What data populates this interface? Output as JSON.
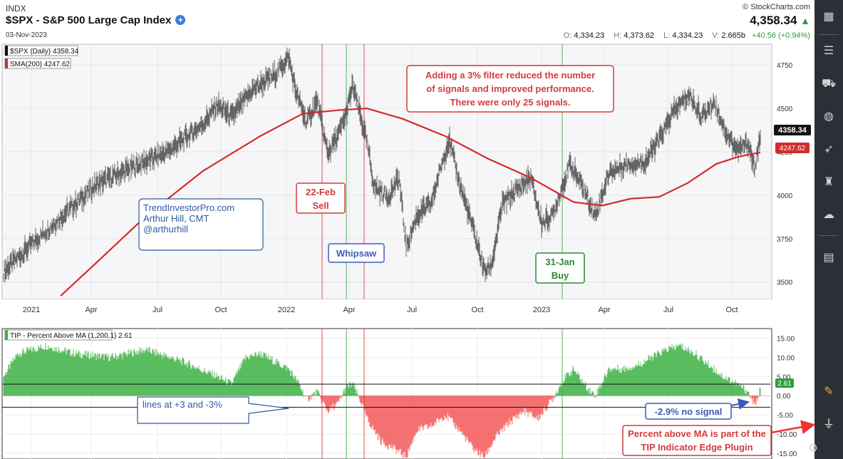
{
  "header": {
    "exchange": "INDX",
    "title": "$SPX - S&P 500 Large Cap Index",
    "date": "03-Nov-2023",
    "brand": "© StockCharts.com",
    "price": "4,358.34",
    "ohlc": {
      "open_label": "O:",
      "open": "4,334.23",
      "high_label": "H:",
      "high": "4,373.62",
      "low_label": "L:",
      "low": "4,334.23",
      "vol_label": "V:",
      "vol": "2.665b",
      "change": "+40.56 (+0.94%)"
    }
  },
  "chart_data": [
    {
      "type": "line",
      "title": "$SPX - S&P 500 Large Cap Index",
      "legend": [
        "$SPX (Daily) 4358.34",
        "SMA(200) 4247.62"
      ],
      "ylim": [
        3400,
        4870
      ],
      "y_ticks": [
        3500,
        3750,
        4000,
        4250,
        4500,
        4750
      ],
      "x_ticks": [
        "2021",
        "Apr",
        "Jul",
        "Oct",
        "2022",
        "Apr",
        "Jul",
        "Oct",
        "2023",
        "Apr",
        "Jul",
        "Oct"
      ],
      "price_points": [
        [
          0,
          3560
        ],
        [
          40,
          3720
        ],
        [
          90,
          3910
        ],
        [
          130,
          4060
        ],
        [
          180,
          4160
        ],
        [
          230,
          4250
        ],
        [
          280,
          4410
        ],
        [
          300,
          4520
        ],
        [
          320,
          4450
        ],
        [
          350,
          4610
        ],
        [
          380,
          4690
        ],
        [
          400,
          4795
        ],
        [
          410,
          4600
        ],
        [
          425,
          4420
        ],
        [
          440,
          4540
        ],
        [
          455,
          4240
        ],
        [
          470,
          4350
        ],
        [
          480,
          4460
        ],
        [
          490,
          4630
        ],
        [
          500,
          4470
        ],
        [
          510,
          4300
        ],
        [
          520,
          4050
        ],
        [
          540,
          3990
        ],
        [
          555,
          4100
        ],
        [
          565,
          3700
        ],
        [
          580,
          3880
        ],
        [
          600,
          3950
        ],
        [
          615,
          4180
        ],
        [
          625,
          4320
        ],
        [
          640,
          4070
        ],
        [
          660,
          3790
        ],
        [
          675,
          3560
        ],
        [
          685,
          3600
        ],
        [
          700,
          3950
        ],
        [
          720,
          4030
        ],
        [
          740,
          4100
        ],
        [
          755,
          3840
        ],
        [
          770,
          3880
        ],
        [
          795,
          4180
        ],
        [
          815,
          4030
        ],
        [
          830,
          3880
        ],
        [
          850,
          4130
        ],
        [
          875,
          4180
        ],
        [
          900,
          4190
        ],
        [
          920,
          4320
        ],
        [
          940,
          4480
        ],
        [
          962,
          4580
        ],
        [
          980,
          4450
        ],
        [
          997,
          4540
        ],
        [
          1015,
          4350
        ],
        [
          1030,
          4260
        ],
        [
          1045,
          4300
        ],
        [
          1055,
          4140
        ],
        [
          1062,
          4358
        ]
      ],
      "sma_points": [
        [
          80,
          3420
        ],
        [
          130,
          3610
        ],
        [
          200,
          3880
        ],
        [
          280,
          4140
        ],
        [
          360,
          4340
        ],
        [
          420,
          4470
        ],
        [
          470,
          4490
        ],
        [
          510,
          4500
        ],
        [
          560,
          4440
        ],
        [
          620,
          4340
        ],
        [
          680,
          4210
        ],
        [
          740,
          4100
        ],
        [
          800,
          3960
        ],
        [
          840,
          3940
        ],
        [
          880,
          3980
        ],
        [
          920,
          3990
        ],
        [
          960,
          4070
        ],
        [
          1000,
          4180
        ],
        [
          1030,
          4220
        ],
        [
          1062,
          4247
        ]
      ],
      "last_price_label": "4358.34",
      "sma_label": "4247.62"
    },
    {
      "type": "bar",
      "legend": [
        "TIP - Percent Above MA (1,200,1) 2.61"
      ],
      "ylim": [
        -16.5,
        17.5
      ],
      "y_ticks": [
        15,
        10,
        5,
        0,
        -5,
        -10,
        -15
      ],
      "y_tick_labels": [
        "15.00",
        "10.00",
        "5.00",
        "0.00",
        "-5.00",
        "-10.00",
        "-15.00"
      ],
      "thresholds": [
        3,
        -3
      ],
      "value_points": [
        [
          0,
          5
        ],
        [
          20,
          11
        ],
        [
          60,
          13
        ],
        [
          100,
          11
        ],
        [
          150,
          10
        ],
        [
          200,
          12
        ],
        [
          250,
          9
        ],
        [
          300,
          5
        ],
        [
          320,
          3
        ],
        [
          340,
          10
        ],
        [
          360,
          11
        ],
        [
          380,
          9
        ],
        [
          400,
          7
        ],
        [
          415,
          3
        ],
        [
          425,
          -1
        ],
        [
          440,
          1
        ],
        [
          455,
          -4
        ],
        [
          470,
          -2
        ],
        [
          480,
          2
        ],
        [
          490,
          3
        ],
        [
          500,
          -1
        ],
        [
          510,
          -6
        ],
        [
          530,
          -12
        ],
        [
          550,
          -14
        ],
        [
          565,
          -16
        ],
        [
          580,
          -9
        ],
        [
          600,
          -8
        ],
        [
          620,
          -5
        ],
        [
          640,
          -9
        ],
        [
          660,
          -14
        ],
        [
          675,
          -16
        ],
        [
          690,
          -11
        ],
        [
          710,
          -7
        ],
        [
          730,
          -4
        ],
        [
          750,
          -6
        ],
        [
          770,
          -1
        ],
        [
          785,
          4
        ],
        [
          800,
          7
        ],
        [
          815,
          3
        ],
        [
          830,
          0
        ],
        [
          850,
          7
        ],
        [
          870,
          7
        ],
        [
          890,
          8
        ],
        [
          910,
          10
        ],
        [
          930,
          12
        ],
        [
          950,
          13
        ],
        [
          970,
          11
        ],
        [
          990,
          8
        ],
        [
          1010,
          5
        ],
        [
          1030,
          3
        ],
        [
          1045,
          1
        ],
        [
          1055,
          -2.9
        ],
        [
          1062,
          2.61
        ]
      ],
      "last_value_label": "2.61"
    }
  ],
  "signals": {
    "sell": {
      "line1": "22-Feb",
      "line2": "Sell"
    },
    "whipsaw": "Whipsaw",
    "buy": {
      "line1": "31-Jan",
      "line2": "Buy"
    }
  },
  "annotations": {
    "filter": [
      "Adding a 3% filter reduced the number",
      "of signals and improved performance.",
      "There were only 25 signals."
    ],
    "author": [
      "TrendInvestorPro.com",
      "Arthur Hill, CMT",
      "@arthurhill"
    ],
    "lines": "lines at +3 and -3%",
    "no_signal": "-2.9% no signal",
    "plugin": [
      "Percent above MA is part of the",
      "TIP Indicator Edge Plugin"
    ]
  },
  "colors": {
    "up": "#3cb043",
    "down": "#f24d4d",
    "sma": "#d42b2b",
    "sell": "#d43b3b",
    "whipsaw": "#3b5bb8",
    "buy": "#2a8a34"
  },
  "sidebar_icons": [
    "layout-icon",
    "sliders-icon",
    "car-icon",
    "globe-icon",
    "rocket-icon",
    "trophy-icon",
    "cloud-icon",
    "document-icon",
    "pencil-icon",
    "plug-icon",
    "gear-icon"
  ]
}
